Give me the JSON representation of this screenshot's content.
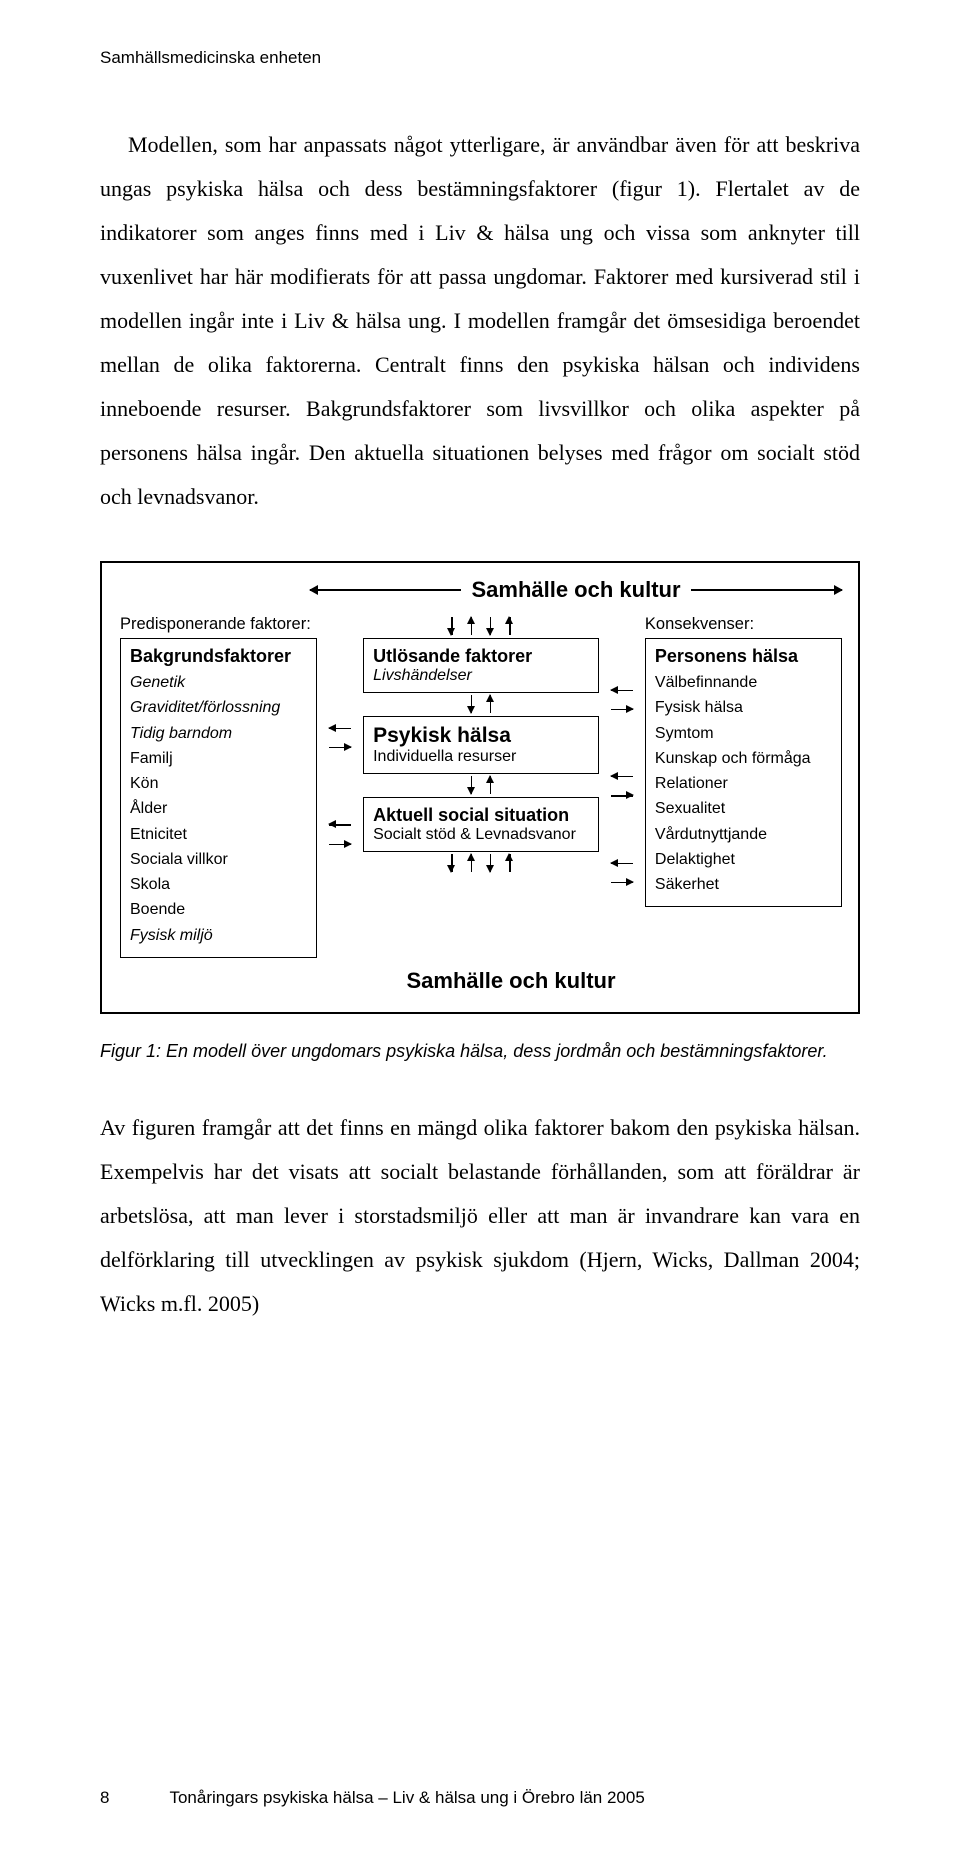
{
  "header": "Samhällsmedicinska enheten",
  "para1": "Modellen, som har anpassats något ytterligare, är användbar även för att beskriva ungas psykiska hälsa och dess bestämningsfaktorer (figur 1). Flertalet av de indikatorer som anges finns med i Liv & hälsa ung och vissa som anknyter till vuxenlivet har här modifierats för att passa ungdomar. Faktorer med kursiverad stil i modellen ingår inte i Liv & hälsa ung. I modellen framgår det ömsesidiga beroendet mellan de olika faktorerna. Centralt finns den psykiska hälsan och individens inneboende resurser. Bakgrundsfaktorer som livsvillkor och olika aspekter på personens hälsa ingår. Den aktuella situationen belyses med frågor om socialt stöd och levnadsvanor.",
  "diagram": {
    "title_top": "Samhälle och kultur",
    "title_bottom": "Samhälle och kultur",
    "left_label": "Predisponerande faktorer:",
    "left_title": "Bakgrundsfaktorer",
    "left_items": [
      {
        "t": "Genetik",
        "it": true
      },
      {
        "t": "Graviditet/förlossning",
        "it": true
      },
      {
        "t": "Tidig barndom",
        "it": true
      },
      {
        "t": "Familj",
        "it": false
      },
      {
        "t": "Kön",
        "it": false
      },
      {
        "t": "Ålder",
        "it": false
      },
      {
        "t": "Etnicitet",
        "it": false
      },
      {
        "t": "Sociala villkor",
        "it": false
      },
      {
        "t": "Skola",
        "it": false
      },
      {
        "t": "Boende",
        "it": false
      },
      {
        "t": "Fysisk miljö",
        "it": true
      }
    ],
    "mid1_title": "Utlösande faktorer",
    "mid1_sub": "Livshändelser",
    "mid2_title": "Psykisk hälsa",
    "mid2_sub": "Individuella resurser",
    "mid3_title": "Aktuell social situation",
    "mid3_sub": "Socialt stöd & Levnadsvanor",
    "right_label": "Konsekvenser:",
    "right_title": "Personens hälsa",
    "right_items": [
      "Välbefinnande",
      "Fysisk hälsa",
      "Symtom",
      "Kunskap och förmåga",
      "Relationer",
      "Sexualitet",
      "Vårdutnyttjande",
      "Delaktighet",
      "Säkerhet"
    ],
    "colors": {
      "border": "#000000",
      "text": "#000000",
      "bg": "#ffffff"
    }
  },
  "caption": "Figur 1: En modell över ungdomars psykiska hälsa, dess jordmån och bestämningsfaktorer.",
  "para2": "Av figuren framgår att det finns en mängd olika faktorer bakom den psykiska hälsan. Exempelvis har det visats att socialt belastande förhållanden, som att föräldrar är arbetslösa, att man lever i storstadsmiljö eller att man är invandrare kan vara en delförklaring till utvecklingen av psykisk sjukdom (Hjern, Wicks, Dallman 2004; Wicks m.fl. 2005)",
  "footer_page": "8",
  "footer_text": "Tonåringars psykiska hälsa – Liv & hälsa ung i Örebro län 2005"
}
